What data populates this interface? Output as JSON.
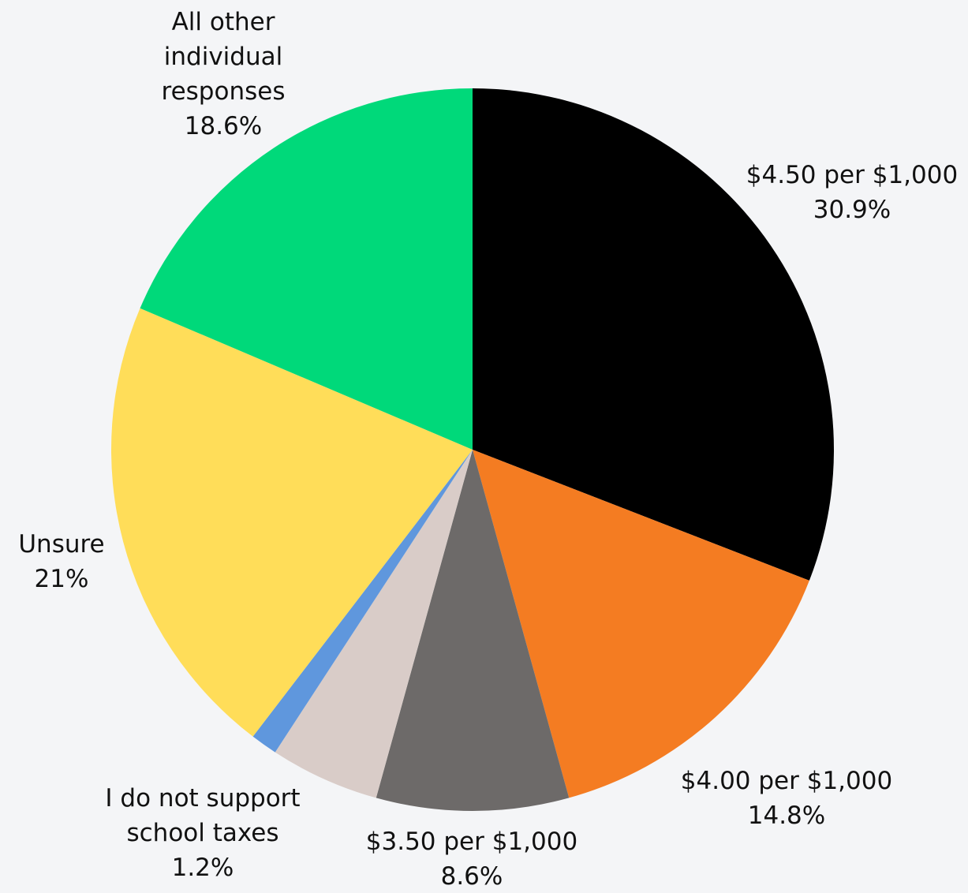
{
  "chart_data": {
    "type": "pie",
    "slices": [
      {
        "label_lines": [
          "$4.50 per $1,000"
        ],
        "value_label": "30.9%",
        "value": 30.9,
        "color": "#000000"
      },
      {
        "label_lines": [
          "$4.00 per $1,000"
        ],
        "value_label": "14.8%",
        "value": 14.8,
        "color": "#f47c22"
      },
      {
        "label_lines": [
          "$3.50 per $1,000"
        ],
        "value_label": "8.6%",
        "value": 8.6,
        "color": "#6d6a69"
      },
      {
        "label_lines": [],
        "value_label": "",
        "value": 4.9,
        "color": "#d9ccc8"
      },
      {
        "label_lines": [
          "I do not support",
          "school taxes"
        ],
        "value_label": "1.2%",
        "value": 1.2,
        "color": "#5f97dd"
      },
      {
        "label_lines": [
          "Unsure"
        ],
        "value_label": "21%",
        "value": 21.0,
        "color": "#ffdd59"
      },
      {
        "label_lines": [
          "All other",
          "individual",
          "responses"
        ],
        "value_label": "18.6%",
        "value": 18.6,
        "color": "#00d97a"
      }
    ]
  }
}
